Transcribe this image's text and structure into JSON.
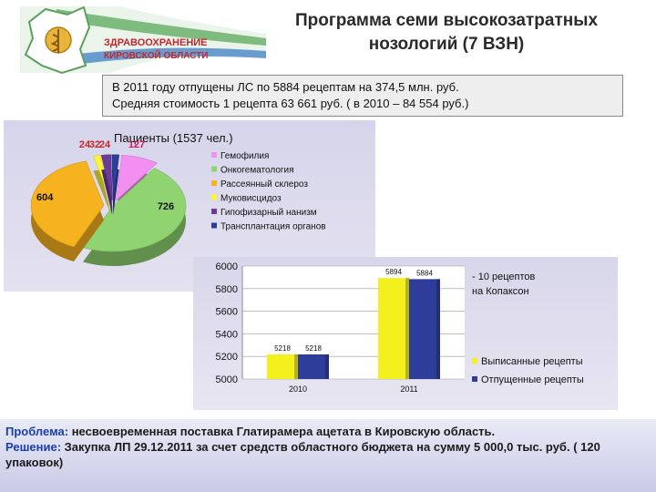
{
  "header": {
    "logo_text_line1": "ЗДРАВООХРАНЕНИЕ",
    "logo_text_line2": "КИРОВСКОЙ ОБЛАСТИ",
    "title_line1": "Программа семи высокозатратных",
    "title_line2": "нозологий (7 ВЗН)"
  },
  "info": {
    "line1": "В 2011 году отпущены ЛС по 5884 рецептам на 374,5 млн. руб.",
    "line2": "Средняя стоимость 1 рецепта  63 661 руб. ( в 2010 – 84 554 руб.)"
  },
  "chart_data": [
    {
      "type": "pie",
      "title": "Пациенты (1537 чел.)",
      "categories": [
        "Гемофилия",
        "Онкогематология",
        "Рассеянный склероз",
        "Муковисцидоз",
        "Гипофизарный нанизм",
        "Трансплантация органов"
      ],
      "values": [
        127,
        726,
        604,
        24,
        32,
        24
      ],
      "data_labels": [
        "127",
        "726",
        "604",
        "24",
        "32",
        "24"
      ],
      "colors": [
        "#f28ff0",
        "#8fd470",
        "#f7b21f",
        "#fbf43a",
        "#6c3b99",
        "#2f3d9a"
      ],
      "legend": "right"
    },
    {
      "type": "bar",
      "categories": [
        "2010",
        "2011"
      ],
      "series": [
        {
          "name": "Выписанные рецепты",
          "values": [
            5218,
            5894
          ],
          "color": "#f4f01e"
        },
        {
          "name": "Отпущенные рецепты",
          "values": [
            5218,
            5884
          ],
          "color": "#2f3d9a"
        }
      ],
      "value_labels": {
        "2010": [
          "5218",
          "5218"
        ],
        "2011": [
          "5894",
          "5884"
        ]
      },
      "yticks": [
        "5000",
        "5200",
        "5400",
        "5600",
        "5800",
        "6000"
      ],
      "ylim": [
        5000,
        6000
      ],
      "annotation_line1": "- 10 рецептов",
      "annotation_line2": "на Копаксон",
      "legend": "right"
    }
  ],
  "bottom": {
    "problem_key": "Проблема:",
    "problem_text": " несвоевременная поставка Глатирамера ацетата в Кировскую область.",
    "solution_key": "Решение:",
    "solution_text": " Закупка ЛП 29.12.2011 за счет средств областного бюджета на сумму 5 000,0 тыс. руб. ( 120 упаковок)"
  }
}
